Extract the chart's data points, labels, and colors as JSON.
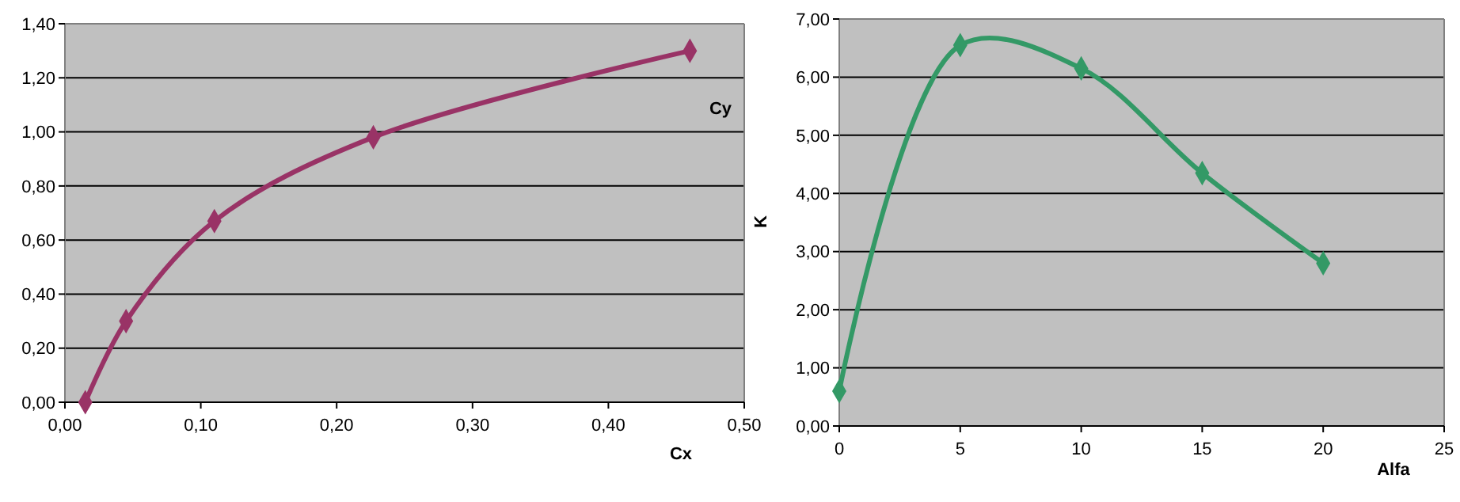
{
  "chart_data": [
    {
      "type": "line",
      "xlabel": "Cx",
      "ylabel": "Cy",
      "marker": "diamond",
      "grid": "y",
      "line_style": "solid",
      "series": [
        {
          "color": "#993366",
          "x": [
            0.015,
            0.045,
            0.11,
            0.227,
            0.46
          ],
          "values": [
            0.0,
            0.3,
            0.67,
            0.98,
            1.3
          ]
        }
      ],
      "xlim": [
        0,
        0.5
      ],
      "xticks": [
        {
          "value": 0,
          "label": "0,00"
        },
        {
          "value": 0.1,
          "label": "0,10"
        },
        {
          "value": 0.2,
          "label": "0,20"
        },
        {
          "value": 0.3,
          "label": "0,30"
        },
        {
          "value": 0.4,
          "label": "0,40"
        },
        {
          "value": 0.5,
          "label": "0,50"
        }
      ],
      "ylim": [
        0,
        1.4
      ],
      "yticks": [
        {
          "value": 0,
          "label": "0,00"
        },
        {
          "value": 0.2,
          "label": "0,20"
        },
        {
          "value": 0.4,
          "label": "0,40"
        },
        {
          "value": 0.6,
          "label": "0,60"
        },
        {
          "value": 0.8,
          "label": "0,80"
        },
        {
          "value": 1.0,
          "label": "1,00"
        },
        {
          "value": 1.2,
          "label": "1,20"
        },
        {
          "value": 1.4,
          "label": "1,40"
        }
      ]
    },
    {
      "type": "line",
      "xlabel": "Alfa",
      "ylabel": "K",
      "marker": "diamond",
      "grid": "y",
      "line_style": "solid",
      "series": [
        {
          "color": "#339966",
          "x": [
            0,
            5,
            10,
            15,
            20
          ],
          "values": [
            0.6,
            6.55,
            6.15,
            4.35,
            2.8
          ]
        }
      ],
      "xlim": [
        0,
        25
      ],
      "xticks": [
        0,
        5,
        10,
        15,
        20,
        25
      ],
      "ylim": [
        0,
        7
      ],
      "yticks": [
        {
          "value": 0,
          "label": "0,00"
        },
        {
          "value": 1,
          "label": "1,00"
        },
        {
          "value": 2,
          "label": "2,00"
        },
        {
          "value": 3,
          "label": "3,00"
        },
        {
          "value": 4,
          "label": "4,00"
        },
        {
          "value": 5,
          "label": "5,00"
        },
        {
          "value": 6,
          "label": "6,00"
        },
        {
          "value": 7,
          "label": "7,00"
        }
      ]
    }
  ]
}
